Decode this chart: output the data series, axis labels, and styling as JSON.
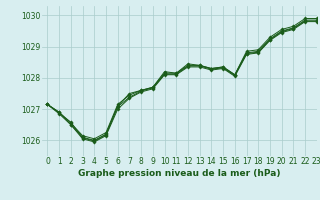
{
  "title": "Graphe pression niveau de la mer (hPa)",
  "bg_color": "#d8eef0",
  "grid_color": "#aacccc",
  "line_color": "#1a5c1a",
  "xlim": [
    -0.5,
    23
  ],
  "ylim": [
    1025.5,
    1030.3
  ],
  "yticks": [
    1026,
    1027,
    1028,
    1029,
    1030
  ],
  "xticks": [
    0,
    1,
    2,
    3,
    4,
    5,
    6,
    7,
    8,
    9,
    10,
    11,
    12,
    13,
    14,
    15,
    16,
    17,
    18,
    19,
    20,
    21,
    22,
    23
  ],
  "series": [
    [
      1027.15,
      1026.9,
      1026.55,
      1026.15,
      1026.05,
      1026.25,
      1027.15,
      1027.45,
      1027.6,
      1027.7,
      1028.2,
      1028.15,
      1028.45,
      1028.4,
      1028.3,
      1028.35,
      1028.1,
      1028.85,
      1028.9,
      1029.3,
      1029.55,
      1029.65,
      1029.9,
      1029.9
    ],
    [
      1027.15,
      1026.85,
      1026.5,
      1026.05,
      1025.95,
      1026.15,
      1027.0,
      1027.35,
      1027.55,
      1027.65,
      1028.1,
      1028.1,
      1028.35,
      1028.35,
      1028.25,
      1028.3,
      1028.05,
      1028.75,
      1028.8,
      1029.2,
      1029.45,
      1029.55,
      1029.8,
      1029.8
    ],
    [
      1027.15,
      1026.88,
      1026.58,
      1026.08,
      1025.98,
      1026.18,
      1027.08,
      1027.38,
      1027.58,
      1027.68,
      1028.12,
      1028.12,
      1028.38,
      1028.38,
      1028.28,
      1028.32,
      1028.08,
      1028.78,
      1028.82,
      1029.22,
      1029.48,
      1029.58,
      1029.82,
      1029.82
    ],
    [
      1027.15,
      1026.9,
      1026.5,
      1026.1,
      1026.0,
      1026.2,
      1027.1,
      1027.5,
      1027.6,
      1027.7,
      1028.15,
      1028.15,
      1028.4,
      1028.4,
      1028.3,
      1028.35,
      1028.1,
      1028.8,
      1028.85,
      1029.25,
      1029.5,
      1029.6,
      1029.85,
      1029.85
    ]
  ],
  "title_fontsize": 6.5,
  "tick_fontsize": 5.5
}
